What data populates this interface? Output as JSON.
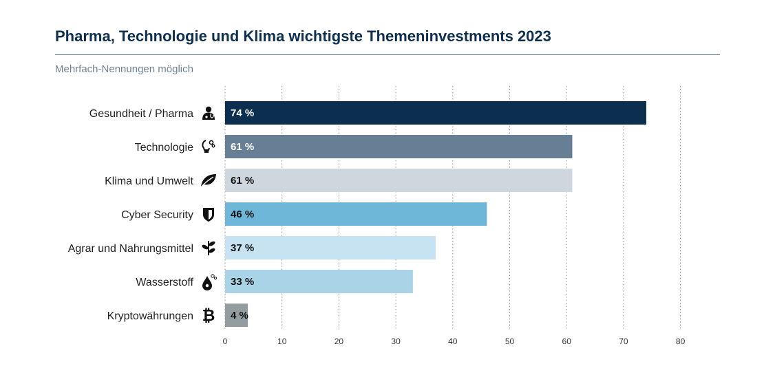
{
  "header": {
    "title": "Pharma, Technologie und Klima wichtigste Themeninvestments 2023",
    "subtitle": "Mehrfach-Nennungen möglich"
  },
  "icons": [
    "doctor-icon",
    "lightbulb-gears-icon",
    "leaf-icon",
    "shield-icon",
    "sprout-icon",
    "hydrogen-drop-icon",
    "bitcoin-icon"
  ],
  "chart_data": {
    "type": "bar",
    "orientation": "horizontal",
    "title": "Pharma, Technologie und Klima wichtigste Themeninvestments 2023",
    "subtitle": "Mehrfach-Nennungen möglich",
    "categories": [
      "Gesundheit / Pharma",
      "Technologie",
      "Klima und Umwelt",
      "Cyber Security",
      "Agrar und Nahrungsmittel",
      "Wasserstoff",
      "Kryptowährungen"
    ],
    "values": [
      74,
      61,
      61,
      46,
      37,
      33,
      4
    ],
    "value_labels": [
      "74 %",
      "61 %",
      "61 %",
      "46 %",
      "37 %",
      "33 %",
      "4 %"
    ],
    "colors": [
      "#0c2f50",
      "#677f95",
      "#cfd7de",
      "#6eb7d9",
      "#c7e2f0",
      "#a9d4e8",
      "#939c9e"
    ],
    "label_colors": [
      "#ffffff",
      "#ffffff",
      "#111111",
      "#111111",
      "#111111",
      "#111111",
      "#111111"
    ],
    "xlim": [
      0,
      80
    ],
    "xticks": [
      0,
      10,
      20,
      30,
      40,
      50,
      60,
      70,
      80
    ],
    "xlabel": "",
    "ylabel": "",
    "grid": "vertical dotted"
  }
}
